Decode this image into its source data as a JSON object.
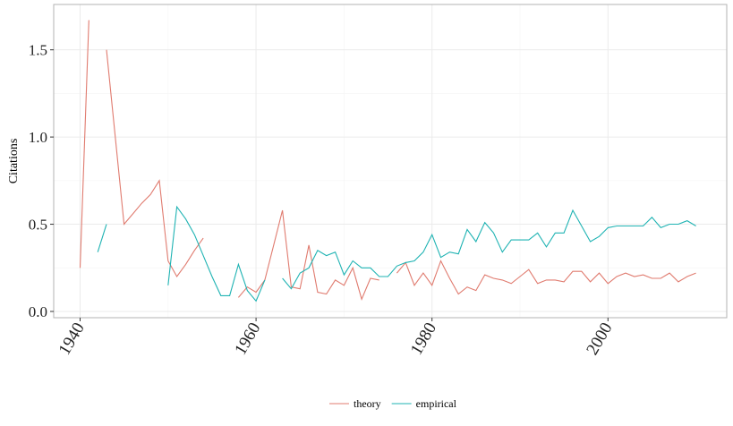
{
  "chart_data": {
    "type": "line",
    "xlabel": "",
    "ylabel": "Citations",
    "xlim": [
      1937,
      2013.5
    ],
    "ylim": [
      -0.036,
      1.76
    ],
    "xticks": [
      1940,
      1960,
      1980,
      2000
    ],
    "yticks": [
      0.0,
      0.5,
      1.0,
      1.5
    ],
    "ytick_labels": [
      "0.0",
      "0.5",
      "1.0",
      "1.5"
    ],
    "grid": true,
    "legend_position": "bottom",
    "x": [
      1940,
      1941,
      1942,
      1943,
      1944,
      1945,
      1946,
      1947,
      1948,
      1949,
      1950,
      1951,
      1952,
      1953,
      1954,
      1955,
      1956,
      1957,
      1958,
      1959,
      1960,
      1961,
      1962,
      1963,
      1964,
      1965,
      1966,
      1967,
      1968,
      1969,
      1970,
      1971,
      1972,
      1973,
      1974,
      1975,
      1976,
      1977,
      1978,
      1979,
      1980,
      1981,
      1982,
      1983,
      1984,
      1985,
      1986,
      1987,
      1988,
      1989,
      1990,
      1991,
      1992,
      1993,
      1994,
      1995,
      1996,
      1997,
      1998,
      1999,
      2000,
      2001,
      2002,
      2003,
      2004,
      2005,
      2006,
      2007,
      2008,
      2009,
      2010
    ],
    "series": [
      {
        "name": "theory",
        "color": "#E07B6F",
        "values": [
          0.25,
          1.67,
          null,
          1.5,
          1.0,
          0.5,
          0.56,
          0.62,
          0.67,
          0.75,
          0.29,
          0.2,
          0.27,
          0.35,
          0.42,
          null,
          null,
          null,
          0.08,
          0.14,
          0.11,
          0.18,
          0.38,
          0.58,
          0.14,
          0.13,
          0.38,
          0.11,
          0.1,
          0.18,
          0.15,
          0.25,
          0.07,
          0.19,
          0.18,
          null,
          0.22,
          0.28,
          0.15,
          0.22,
          0.15,
          0.29,
          0.19,
          0.1,
          0.14,
          0.12,
          0.21,
          0.19,
          0.18,
          0.16,
          0.2,
          0.24,
          0.16,
          0.18,
          0.18,
          0.17,
          0.23,
          0.23,
          0.17,
          0.22,
          0.16,
          0.2,
          0.22,
          0.2,
          0.21,
          0.19,
          0.19,
          0.22,
          0.17,
          0.2,
          0.22
        ]
      },
      {
        "name": "empirical",
        "color": "#1FB3B3",
        "values": [
          null,
          null,
          0.34,
          0.5,
          null,
          null,
          null,
          null,
          null,
          null,
          0.15,
          0.6,
          0.53,
          0.44,
          0.32,
          0.2,
          0.09,
          0.09,
          0.27,
          0.12,
          0.06,
          0.18,
          null,
          0.19,
          0.13,
          0.22,
          0.25,
          0.35,
          0.32,
          0.34,
          0.21,
          0.29,
          0.25,
          0.25,
          0.2,
          0.2,
          0.26,
          0.28,
          0.29,
          0.34,
          0.44,
          0.31,
          0.34,
          0.33,
          0.47,
          0.4,
          0.51,
          0.45,
          0.34,
          0.41,
          0.41,
          0.41,
          0.45,
          0.37,
          0.45,
          0.45,
          0.58,
          0.49,
          0.4,
          0.43,
          0.48,
          0.49,
          0.49,
          0.49,
          0.49,
          0.54,
          0.48,
          0.5,
          0.5,
          0.52,
          0.49
        ]
      }
    ]
  }
}
